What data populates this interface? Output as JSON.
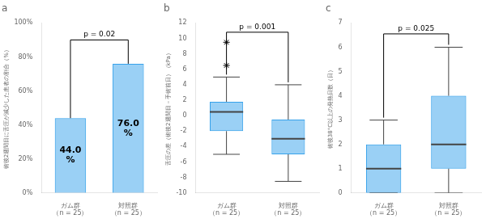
{
  "chart_data": [
    {
      "type": "bar",
      "title": "a",
      "categories": [
        "ガム群\n（n = 25）",
        "対照群\n（n = 25）"
      ],
      "values": [
        44.0,
        76.0
      ],
      "value_labels": [
        "44.0\n%",
        "76.0\n%"
      ],
      "data_labels": true,
      "ylabel": "術後2週間目に舌圧が減少した患者の割合（%）",
      "ylim": [
        0,
        100
      ],
      "yticks": [
        {
          "value": 0,
          "label": "0%"
        },
        {
          "value": 20,
          "label": "20%"
        },
        {
          "value": 40,
          "label": "40%"
        },
        {
          "value": 60,
          "label": "60%"
        },
        {
          "value": 80,
          "label": "80%"
        },
        {
          "value": 100,
          "label": "100%"
        }
      ],
      "grid": false,
      "annotations": [
        {
          "text": "p = 0.02",
          "y": 90
        }
      ]
    },
    {
      "type": "box",
      "title": "b",
      "categories": [
        "ガム群\n（n = 25）",
        "対照群\n（n = 25）"
      ],
      "boxes": [
        {
          "q1": -2.0,
          "median": 0.5,
          "q3": 1.8,
          "whisker_low": -5.0,
          "whisker_high": 5.0,
          "outliers": [
            6.5,
            9.5
          ]
        },
        {
          "q1": -5.0,
          "median": -3.0,
          "q3": -0.5,
          "whisker_low": -8.5,
          "whisker_high": 4.0,
          "outliers": []
        }
      ],
      "ylabel": "舌圧の差（術後2週間目－手術前日）（kPa）",
      "ylim": [
        -10,
        12
      ],
      "yticks": [
        -10,
        -8,
        -6,
        -4,
        -2,
        0,
        2,
        4,
        6,
        8,
        10,
        12
      ],
      "grid": false,
      "annotations": [
        {
          "text": "p = 0.001",
          "y": 10.8
        }
      ]
    },
    {
      "type": "box",
      "title": "c",
      "categories": [
        "ガム群\n（n = 25）",
        "対照群\n（n = 25）"
      ],
      "boxes": [
        {
          "q1": 0.0,
          "median": 1.0,
          "q3": 2.0,
          "whisker_low": 0.0,
          "whisker_high": 3.0,
          "outliers": []
        },
        {
          "q1": 1.0,
          "median": 2.0,
          "q3": 4.0,
          "whisker_low": 0.0,
          "whisker_high": 6.0,
          "outliers": []
        }
      ],
      "ylabel": "術後38°C以上の発熱日数（日）",
      "ylim": [
        0,
        7
      ],
      "yticks": [
        0,
        1,
        2,
        3,
        4,
        5,
        6,
        7
      ],
      "grid": false,
      "annotations": [
        {
          "text": "p = 0.025",
          "y": 6.55
        }
      ]
    }
  ]
}
